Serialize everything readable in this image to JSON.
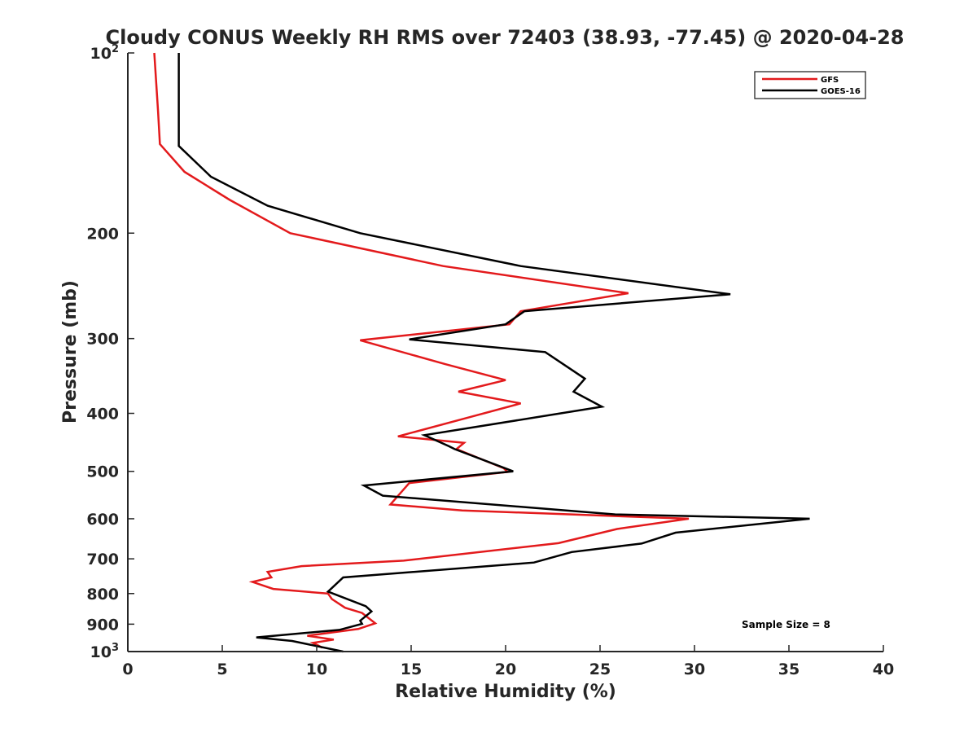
{
  "chart_data": {
    "type": "line",
    "title": "Cloudy CONUS Weekly RH RMS over 72403 (38.93, -77.45) @ 2020-04-28",
    "xlabel": "Relative Humidity (%)",
    "ylabel": "Pressure (mb)",
    "xlim": [
      0,
      40
    ],
    "ylim": [
      100,
      1000
    ],
    "yscale": "log",
    "y_reversed": true,
    "x_ticks": [
      "0",
      "5",
      "10",
      "15",
      "20",
      "25",
      "30",
      "35",
      "40"
    ],
    "y_ticks": [
      {
        "value": 100,
        "base": "10",
        "exp": "2"
      },
      {
        "value": 200,
        "base": "200",
        "exp": ""
      },
      {
        "value": 300,
        "base": "300",
        "exp": ""
      },
      {
        "value": 400,
        "base": "400",
        "exp": ""
      },
      {
        "value": 500,
        "base": "500",
        "exp": ""
      },
      {
        "value": 600,
        "base": "600",
        "exp": ""
      },
      {
        "value": 700,
        "base": "700",
        "exp": ""
      },
      {
        "value": 800,
        "base": "800",
        "exp": ""
      },
      {
        "value": 900,
        "base": "900",
        "exp": ""
      },
      {
        "value": 1000,
        "base": "10",
        "exp": "3"
      }
    ],
    "grid": false,
    "legend_position": "top-right",
    "annotation": "Sample Size = 8",
    "series": [
      {
        "name": "GFS",
        "color": "#e31a1c",
        "points": [
          [
            1.4,
            100
          ],
          [
            1.6,
            125
          ],
          [
            1.7,
            142
          ],
          [
            3.0,
            158
          ],
          [
            5.4,
            176
          ],
          [
            8.6,
            200
          ],
          [
            16.7,
            227
          ],
          [
            26.5,
            252
          ],
          [
            20.8,
            270
          ],
          [
            20.2,
            284
          ],
          [
            12.3,
            302
          ],
          [
            16.8,
            331
          ],
          [
            20.0,
            352
          ],
          [
            17.5,
            368
          ],
          [
            20.8,
            385
          ],
          [
            18.6,
            402
          ],
          [
            14.3,
            437
          ],
          [
            17.8,
            448
          ],
          [
            17.4,
            459
          ],
          [
            19.9,
            494
          ],
          [
            20.1,
            501
          ],
          [
            14.9,
            523
          ],
          [
            13.9,
            568
          ],
          [
            17.7,
            581
          ],
          [
            29.7,
            600
          ],
          [
            25.9,
            624
          ],
          [
            22.8,
            659
          ],
          [
            14.6,
            705
          ],
          [
            9.2,
            720
          ],
          [
            7.4,
            736
          ],
          [
            7.6,
            752
          ],
          [
            6.6,
            765
          ],
          [
            7.7,
            786
          ],
          [
            10.6,
            800
          ],
          [
            10.8,
            817
          ],
          [
            11.5,
            845
          ],
          [
            12.4,
            862
          ],
          [
            13.1,
            897
          ],
          [
            12.2,
            917
          ],
          [
            9.5,
            941
          ],
          [
            10.9,
            955
          ],
          [
            9.8,
            967
          ],
          [
            10.3,
            985
          ]
        ]
      },
      {
        "name": "GOES-16",
        "color": "#000000",
        "points": [
          [
            2.7,
            100
          ],
          [
            2.7,
            143
          ],
          [
            4.4,
            161
          ],
          [
            7.4,
            180
          ],
          [
            12.3,
            200
          ],
          [
            20.8,
            227
          ],
          [
            31.9,
            253
          ],
          [
            21.0,
            270
          ],
          [
            20.0,
            284
          ],
          [
            14.9,
            301
          ],
          [
            22.1,
            316
          ],
          [
            24.2,
            350
          ],
          [
            23.6,
            368
          ],
          [
            25.1,
            390
          ],
          [
            15.7,
            435
          ],
          [
            17.0,
            454
          ],
          [
            17.3,
            459
          ],
          [
            20.4,
            500
          ],
          [
            12.5,
            528
          ],
          [
            13.5,
            549
          ],
          [
            25.8,
            590
          ],
          [
            36.1,
            600
          ],
          [
            29.0,
            633
          ],
          [
            27.2,
            660
          ],
          [
            23.5,
            682
          ],
          [
            21.5,
            710
          ],
          [
            11.4,
            752
          ],
          [
            10.6,
            794
          ],
          [
            12.6,
            840
          ],
          [
            12.9,
            857
          ],
          [
            12.3,
            888
          ],
          [
            12.4,
            899
          ],
          [
            11.2,
            920
          ],
          [
            6.8,
            947
          ],
          [
            8.7,
            960
          ],
          [
            11.4,
            1000
          ]
        ]
      }
    ]
  }
}
